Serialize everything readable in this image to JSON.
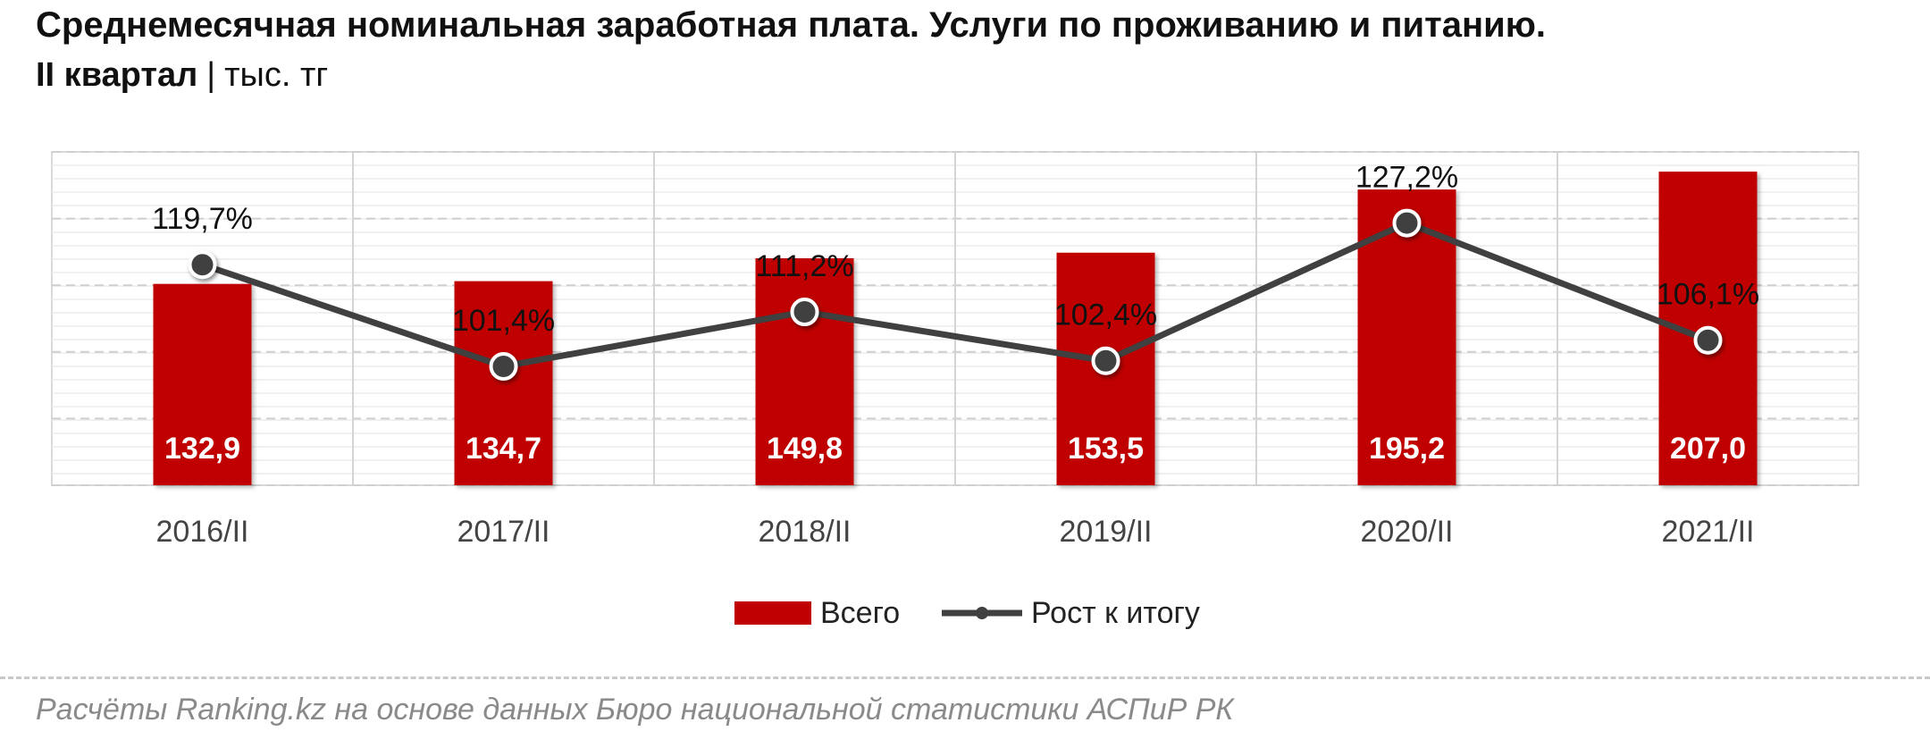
{
  "header": {
    "title": "Среднемесячная номинальная заработная плата. Услуги по проживанию и питанию.",
    "period": "II квартал",
    "separator": "|",
    "unit": "тыс. тг"
  },
  "chart_data": {
    "type": "bar",
    "categories": [
      "2016/II",
      "2017/II",
      "2018/II",
      "2019/II",
      "2020/II",
      "2021/II"
    ],
    "series": [
      {
        "name": "Всего",
        "type": "bar",
        "values": [
          132.9,
          134.7,
          149.8,
          153.5,
          195.2,
          207.0
        ],
        "labels": [
          "132,9",
          "134,7",
          "149,8",
          "153,5",
          "195,2",
          "207,0"
        ],
        "color": "#c00000"
      },
      {
        "name": "Рост к итогу",
        "type": "line",
        "values": [
          119.7,
          101.4,
          111.2,
          102.4,
          127.2,
          106.1
        ],
        "labels": [
          "119,7%",
          "101,4%",
          "111,2%",
          "102,4%",
          "127,2%",
          "106,1%"
        ],
        "color": "#404040"
      }
    ],
    "legend_position": "bottom",
    "grid": true
  },
  "footer": {
    "source": "Расчёты Ranking.kz на основе данных Бюро национальной статистики АСПиР РК"
  }
}
